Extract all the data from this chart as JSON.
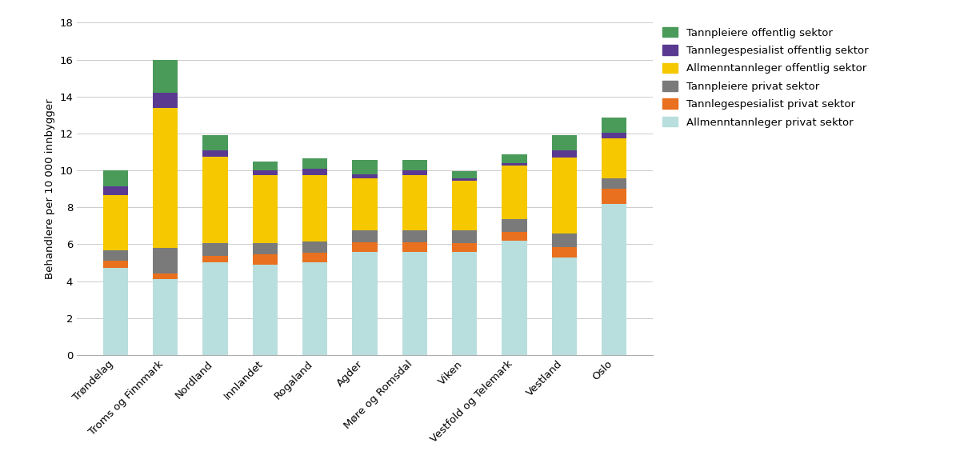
{
  "categories": [
    "Trøndelag",
    "Troms og Finnmark",
    "Nordland",
    "Innlandet",
    "Rogaland",
    "Agder",
    "Møre og Romsdal",
    "Viken",
    "Vestfold og Telemark",
    "Vestland",
    "Oslo"
  ],
  "series": {
    "Allmenntannleger privat sektor": [
      4.7,
      4.1,
      5.0,
      4.9,
      5.0,
      5.6,
      5.6,
      5.6,
      6.2,
      5.3,
      8.2
    ],
    "Tannlegespesialist privat sektor": [
      0.4,
      0.3,
      0.35,
      0.55,
      0.55,
      0.5,
      0.5,
      0.45,
      0.45,
      0.55,
      0.8
    ],
    "Tannpleiere privat sektor": [
      0.55,
      1.4,
      0.7,
      0.6,
      0.6,
      0.65,
      0.65,
      0.7,
      0.7,
      0.75,
      0.55
    ],
    "Allmenntannleger offentlig sektor": [
      3.0,
      7.6,
      4.7,
      3.7,
      3.6,
      2.8,
      3.0,
      2.7,
      2.9,
      4.1,
      2.2
    ],
    "Tannlegespesialist offentlig sektor": [
      0.5,
      0.8,
      0.35,
      0.25,
      0.35,
      0.25,
      0.25,
      0.1,
      0.15,
      0.4,
      0.3
    ],
    "Tannpleiere offentlig sektor": [
      0.85,
      1.8,
      0.8,
      0.5,
      0.55,
      0.75,
      0.55,
      0.4,
      0.45,
      0.8,
      0.8
    ]
  },
  "colors": {
    "Allmenntannleger privat sektor": "#b8dede",
    "Tannlegespesialist privat sektor": "#e8701e",
    "Tannpleiere privat sektor": "#7a7a7a",
    "Allmenntannleger offentlig sektor": "#f5c800",
    "Tannlegespesialist offentlig sektor": "#5a3a90",
    "Tannpleiere offentlig sektor": "#4a9a5a"
  },
  "legend_order": [
    "Tannpleiere offentlig sektor",
    "Tannlegespesialist offentlig sektor",
    "Allmenntannleger offentlig sektor",
    "Tannpleiere privat sektor",
    "Tannlegespesialist privat sektor",
    "Allmenntannleger privat sektor"
  ],
  "series_order": [
    "Allmenntannleger privat sektor",
    "Tannlegespesialist privat sektor",
    "Tannpleiere privat sektor",
    "Allmenntannleger offentlig sektor",
    "Tannlegespesialist offentlig sektor",
    "Tannpleiere offentlig sektor"
  ],
  "ylabel": "Behandlere per 10 000 innbygger",
  "ylim": [
    0,
    18
  ],
  "yticks": [
    0,
    2,
    4,
    6,
    8,
    10,
    12,
    14,
    16,
    18
  ],
  "background_color": "#ffffff",
  "bar_width": 0.5
}
